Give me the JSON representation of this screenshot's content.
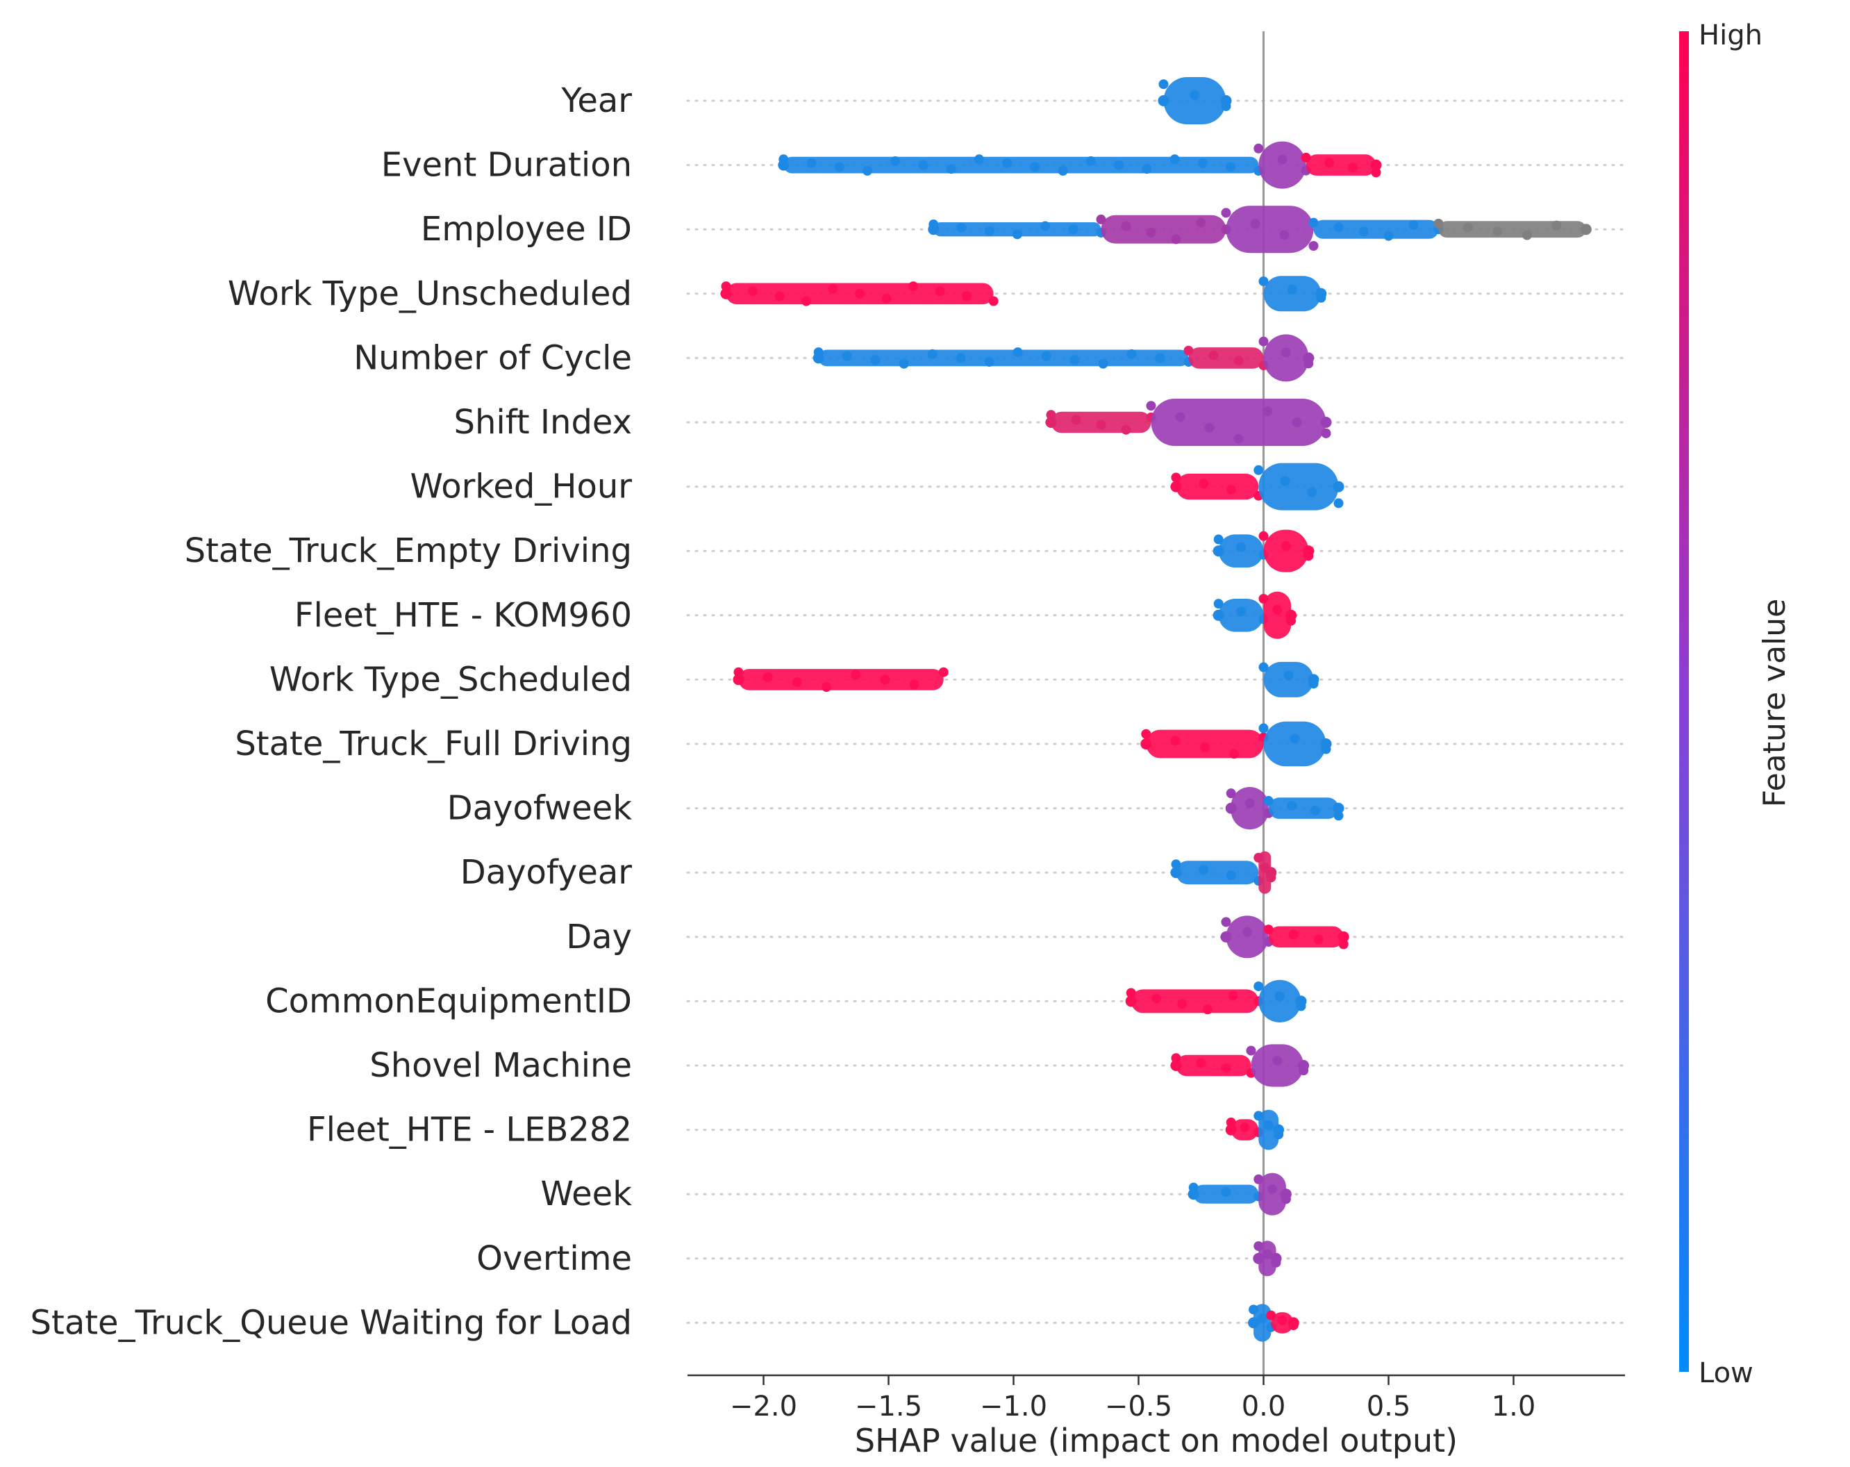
{
  "chart_data": {
    "type": "scatter",
    "subtype": "shap-beeswarm",
    "title": "",
    "xlabel": "SHAP value (impact on model output)",
    "ylabel": "",
    "xlim": [
      -2.3,
      1.45
    ],
    "xticks": [
      -2.0,
      -1.5,
      -1.0,
      -0.5,
      0.0,
      0.5,
      1.0
    ],
    "xtick_labels": [
      "−2.0",
      "−1.5",
      "−1.0",
      "−0.5",
      "0.0",
      "0.5",
      "1.0"
    ],
    "zero_line": 0.0,
    "colorbar": {
      "title": "Feature value",
      "high_label": "High",
      "low_label": "Low",
      "high_color": "#ff0051",
      "low_color": "#008bfb"
    },
    "features": [
      {
        "name": "Year",
        "min": -0.4,
        "max": -0.15,
        "segments": [
          {
            "from": -0.4,
            "to": -0.15,
            "color": "#1e88e5",
            "thick": 1.0
          }
        ]
      },
      {
        "name": "Event Duration",
        "min": -1.92,
        "max": 0.45,
        "segments": [
          {
            "from": -1.92,
            "to": -0.02,
            "color": "#1e88e5",
            "thick": 0.35
          },
          {
            "from": -0.02,
            "to": 0.17,
            "color": "#9b3fb5",
            "thick": 1.0
          },
          {
            "from": 0.17,
            "to": 0.45,
            "color": "#ff0d57",
            "thick": 0.45
          }
        ]
      },
      {
        "name": "Employee ID",
        "min": -1.32,
        "max": 1.29,
        "segments": [
          {
            "from": -1.32,
            "to": -0.65,
            "color": "#1e88e5",
            "thick": 0.3
          },
          {
            "from": -0.65,
            "to": -0.15,
            "color": "#a43aa8",
            "thick": 0.6
          },
          {
            "from": -0.15,
            "to": 0.2,
            "color": "#9b3fb5",
            "thick": 1.0
          },
          {
            "from": 0.2,
            "to": 0.7,
            "color": "#1e88e5",
            "thick": 0.4
          },
          {
            "from": 0.7,
            "to": 1.29,
            "color": "#808080",
            "thick": 0.35
          }
        ]
      },
      {
        "name": "Work Type_Unscheduled",
        "min": -2.15,
        "max": 0.23,
        "segments": [
          {
            "from": -2.15,
            "to": -1.08,
            "color": "#ff0d57",
            "thick": 0.45
          },
          {
            "from": 0.0,
            "to": 0.23,
            "color": "#1e88e5",
            "thick": 0.75
          }
        ]
      },
      {
        "name": "Number of Cycle",
        "min": -1.78,
        "max": 0.18,
        "segments": [
          {
            "from": -1.78,
            "to": -0.3,
            "color": "#1e88e5",
            "thick": 0.35
          },
          {
            "from": -0.3,
            "to": 0.0,
            "color": "#e0256c",
            "thick": 0.45
          },
          {
            "from": 0.0,
            "to": 0.18,
            "color": "#9b3fb5",
            "thick": 1.0
          }
        ]
      },
      {
        "name": "Shift Index",
        "min": -0.85,
        "max": 0.25,
        "segments": [
          {
            "from": -0.85,
            "to": -0.45,
            "color": "#e0256c",
            "thick": 0.45
          },
          {
            "from": -0.45,
            "to": 0.25,
            "color": "#9b3fb5",
            "thick": 1.0
          }
        ]
      },
      {
        "name": "Worked_Hour",
        "min": -0.35,
        "max": 0.3,
        "segments": [
          {
            "from": -0.35,
            "to": -0.02,
            "color": "#ff0d57",
            "thick": 0.55
          },
          {
            "from": -0.02,
            "to": 0.3,
            "color": "#1e88e5",
            "thick": 1.0
          }
        ]
      },
      {
        "name": "State_Truck_Empty Driving",
        "min": -0.18,
        "max": 0.18,
        "segments": [
          {
            "from": -0.18,
            "to": 0.0,
            "color": "#1e88e5",
            "thick": 0.7
          },
          {
            "from": 0.0,
            "to": 0.18,
            "color": "#ff0d57",
            "thick": 0.9
          }
        ]
      },
      {
        "name": "Fleet_HTE - KOM960",
        "min": -0.18,
        "max": 0.11,
        "segments": [
          {
            "from": -0.18,
            "to": 0.0,
            "color": "#1e88e5",
            "thick": 0.7
          },
          {
            "from": 0.0,
            "to": 0.11,
            "color": "#ff0d57",
            "thick": 1.0
          }
        ]
      },
      {
        "name": "Work Type_Scheduled",
        "min": -2.1,
        "max": 0.2,
        "segments": [
          {
            "from": -2.1,
            "to": -1.28,
            "color": "#ff0d57",
            "thick": 0.45
          },
          {
            "from": 0.0,
            "to": 0.2,
            "color": "#1e88e5",
            "thick": 0.75
          }
        ]
      },
      {
        "name": "State_Truck_Full Driving",
        "min": -0.47,
        "max": 0.25,
        "segments": [
          {
            "from": -0.47,
            "to": 0.0,
            "color": "#ff0d57",
            "thick": 0.6
          },
          {
            "from": 0.0,
            "to": 0.25,
            "color": "#1e88e5",
            "thick": 0.95
          }
        ]
      },
      {
        "name": "Dayofweek",
        "min": -0.13,
        "max": 0.3,
        "segments": [
          {
            "from": -0.13,
            "to": 0.02,
            "color": "#9b3fb5",
            "thick": 0.9
          },
          {
            "from": 0.02,
            "to": 0.3,
            "color": "#1e88e5",
            "thick": 0.45
          }
        ]
      },
      {
        "name": "Dayofyear",
        "min": -0.35,
        "max": 0.03,
        "segments": [
          {
            "from": -0.35,
            "to": -0.02,
            "color": "#1e88e5",
            "thick": 0.5
          },
          {
            "from": -0.02,
            "to": 0.03,
            "color": "#e0256c",
            "thick": 0.9
          }
        ]
      },
      {
        "name": "Day",
        "min": -0.15,
        "max": 0.32,
        "segments": [
          {
            "from": -0.15,
            "to": 0.02,
            "color": "#9b3fb5",
            "thick": 0.9
          },
          {
            "from": 0.02,
            "to": 0.32,
            "color": "#ff0d57",
            "thick": 0.45
          }
        ]
      },
      {
        "name": "CommonEquipmentID",
        "min": -0.53,
        "max": 0.15,
        "segments": [
          {
            "from": -0.53,
            "to": -0.02,
            "color": "#ff0d57",
            "thick": 0.5
          },
          {
            "from": -0.02,
            "to": 0.15,
            "color": "#1e88e5",
            "thick": 0.9
          }
        ]
      },
      {
        "name": "Shovel Machine",
        "min": -0.35,
        "max": 0.16,
        "segments": [
          {
            "from": -0.35,
            "to": -0.05,
            "color": "#ff0d57",
            "thick": 0.45
          },
          {
            "from": -0.05,
            "to": 0.16,
            "color": "#9b3fb5",
            "thick": 0.9
          }
        ]
      },
      {
        "name": "Fleet_HTE - LEB282",
        "min": -0.13,
        "max": 0.06,
        "segments": [
          {
            "from": -0.13,
            "to": -0.02,
            "color": "#ff0d57",
            "thick": 0.45
          },
          {
            "from": -0.02,
            "to": 0.06,
            "color": "#1e88e5",
            "thick": 0.85
          }
        ]
      },
      {
        "name": "Week",
        "min": -0.28,
        "max": 0.09,
        "segments": [
          {
            "from": -0.28,
            "to": -0.02,
            "color": "#1e88e5",
            "thick": 0.4
          },
          {
            "from": -0.02,
            "to": 0.09,
            "color": "#9b3fb5",
            "thick": 0.9
          }
        ]
      },
      {
        "name": "Overtime",
        "min": -0.02,
        "max": 0.05,
        "segments": [
          {
            "from": -0.02,
            "to": 0.05,
            "color": "#9b3fb5",
            "thick": 0.75
          }
        ]
      },
      {
        "name": "State_Truck_Queue Waiting for Load",
        "min": -0.04,
        "max": 0.12,
        "segments": [
          {
            "from": -0.04,
            "to": 0.03,
            "color": "#1e88e5",
            "thick": 0.8
          },
          {
            "from": 0.03,
            "to": 0.12,
            "color": "#ff0d57",
            "thick": 0.45
          }
        ]
      }
    ]
  }
}
